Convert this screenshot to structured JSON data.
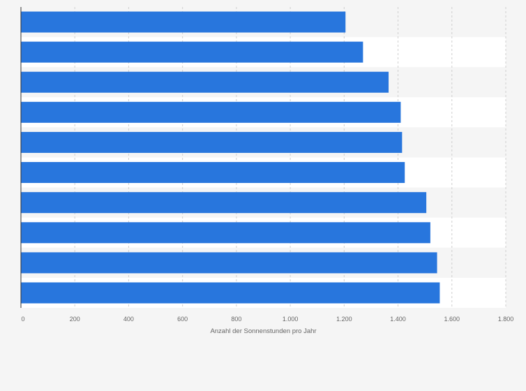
{
  "chart_data": {
    "type": "bar",
    "orientation": "horizontal",
    "categories": [
      "",
      "",
      "",
      "",
      "",
      "",
      "",
      "",
      "",
      ""
    ],
    "values": [
      1205,
      1270,
      1365,
      1410,
      1415,
      1425,
      1505,
      1520,
      1545,
      1555
    ],
    "xlabel": "Anzahl der Sonnenstunden pro Jahr",
    "ylabel": "",
    "xlim": [
      0,
      1800
    ],
    "x_ticks": [
      0,
      200,
      400,
      600,
      800,
      1000,
      1200,
      1400,
      1600,
      1800
    ],
    "x_tick_labels": [
      "0",
      "200",
      "400",
      "600",
      "800",
      "1.000",
      "1.200",
      "1.400",
      "1.600",
      "1.800"
    ],
    "grid": "vertical dashed",
    "bar_color": "#2876dd",
    "band_colors": [
      "#f5f5f5",
      "#ffffff"
    ]
  }
}
